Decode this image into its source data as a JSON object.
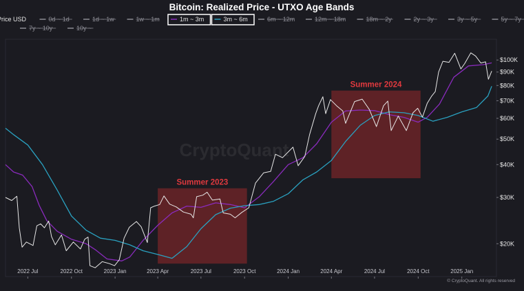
{
  "chart_data": {
    "type": "line",
    "title": "Bitcoin: Realized Price - UTXO Age Bands",
    "y_scale": "log",
    "ylim": [
      15000,
      120000
    ],
    "x_range": [
      "2022-05-15",
      "2025-03-15"
    ],
    "grid": false,
    "legend_position": "top",
    "legend": [
      {
        "label": "Price USD",
        "active": true,
        "highlighted": false
      },
      {
        "label": "0d ~ 1d",
        "active": false,
        "highlighted": false
      },
      {
        "label": "1d ~ 1w",
        "active": false,
        "highlighted": false
      },
      {
        "label": "1w ~ 1m",
        "active": false,
        "highlighted": false
      },
      {
        "label": "1m ~ 3m",
        "active": true,
        "highlighted": true
      },
      {
        "label": "3m ~ 6m",
        "active": true,
        "highlighted": true
      },
      {
        "label": "6m ~ 12m",
        "active": false,
        "highlighted": false
      },
      {
        "label": "12m ~ 18m",
        "active": false,
        "highlighted": false
      },
      {
        "label": "18m ~ 2y",
        "active": false,
        "highlighted": false
      },
      {
        "label": "2y ~ 3y",
        "active": false,
        "highlighted": false
      },
      {
        "label": "3y ~ 5y",
        "active": false,
        "highlighted": false
      },
      {
        "label": "5y ~ 7y",
        "active": false,
        "highlighted": false
      },
      {
        "label": "7y ~ 10y",
        "active": false,
        "highlighted": false
      },
      {
        "label": "10y ~",
        "active": false,
        "highlighted": false
      }
    ],
    "x_ticks": [
      {
        "label": "2022 Jul",
        "date": "2022-07-01"
      },
      {
        "label": "2022 Oct",
        "date": "2022-10-01"
      },
      {
        "label": "2023 Jan",
        "date": "2023-01-01"
      },
      {
        "label": "2023 Apr",
        "date": "2023-04-01"
      },
      {
        "label": "2023 Jul",
        "date": "2023-07-01"
      },
      {
        "label": "2023 Oct",
        "date": "2023-10-01"
      },
      {
        "label": "2024 Jan",
        "date": "2024-01-01"
      },
      {
        "label": "2024 Apr",
        "date": "2024-04-01"
      },
      {
        "label": "2024 Jul",
        "date": "2024-07-01"
      },
      {
        "label": "2024 Oct",
        "date": "2024-10-01"
      },
      {
        "label": "2025 Jan",
        "date": "2025-01-01"
      }
    ],
    "y_ticks": [
      {
        "label": "$100K",
        "value": 100000
      },
      {
        "label": "$90K",
        "value": 90000
      },
      {
        "label": "$80K",
        "value": 80000
      },
      {
        "label": "$70K",
        "value": 70000
      },
      {
        "label": "$60K",
        "value": 60000
      },
      {
        "label": "$50K",
        "value": 50000
      },
      {
        "label": "$40K",
        "value": 40000
      },
      {
        "label": "$30K",
        "value": 30000
      },
      {
        "label": "$20K",
        "value": 20000
      }
    ],
    "series": [
      {
        "name": "Price USD",
        "color": "#e8e8e8",
        "points": [
          [
            "2022-05-15",
            30000
          ],
          [
            "2022-05-28",
            29200
          ],
          [
            "2022-06-08",
            30300
          ],
          [
            "2022-06-13",
            23000
          ],
          [
            "2022-06-19",
            19400
          ],
          [
            "2022-06-28",
            20300
          ],
          [
            "2022-07-12",
            19700
          ],
          [
            "2022-07-20",
            23400
          ],
          [
            "2022-07-28",
            23800
          ],
          [
            "2022-08-05",
            23000
          ],
          [
            "2022-08-14",
            24400
          ],
          [
            "2022-08-20",
            21300
          ],
          [
            "2022-08-28",
            19800
          ],
          [
            "2022-09-10",
            21600
          ],
          [
            "2022-09-20",
            18800
          ],
          [
            "2022-10-05",
            20300
          ],
          [
            "2022-10-20",
            19100
          ],
          [
            "2022-10-29",
            20800
          ],
          [
            "2022-11-05",
            21200
          ],
          [
            "2022-11-09",
            16500
          ],
          [
            "2022-11-20",
            16200
          ],
          [
            "2022-12-05",
            17100
          ],
          [
            "2022-12-20",
            16800
          ],
          [
            "2022-12-31",
            16500
          ],
          [
            "2023-01-10",
            17400
          ],
          [
            "2023-01-20",
            21000
          ],
          [
            "2023-01-31",
            23100
          ],
          [
            "2023-02-15",
            24300
          ],
          [
            "2023-02-25",
            23200
          ],
          [
            "2023-03-10",
            20200
          ],
          [
            "2023-03-17",
            27400
          ],
          [
            "2023-03-25",
            27800
          ],
          [
            "2023-04-05",
            28200
          ],
          [
            "2023-04-14",
            30400
          ],
          [
            "2023-04-26",
            28300
          ],
          [
            "2023-05-10",
            27600
          ],
          [
            "2023-05-25",
            26400
          ],
          [
            "2023-06-10",
            25900
          ],
          [
            "2023-06-15",
            25100
          ],
          [
            "2023-06-22",
            30200
          ],
          [
            "2023-07-05",
            30600
          ],
          [
            "2023-07-14",
            31400
          ],
          [
            "2023-07-25",
            29300
          ],
          [
            "2023-08-10",
            29600
          ],
          [
            "2023-08-17",
            26200
          ],
          [
            "2023-09-01",
            25900
          ],
          [
            "2023-09-11",
            25100
          ],
          [
            "2023-09-25",
            26300
          ],
          [
            "2023-10-10",
            27400
          ],
          [
            "2023-10-24",
            34000
          ],
          [
            "2023-11-10",
            37200
          ],
          [
            "2023-11-25",
            37700
          ],
          [
            "2023-12-05",
            43800
          ],
          [
            "2023-12-20",
            42500
          ],
          [
            "2024-01-11",
            46600
          ],
          [
            "2024-01-22",
            39600
          ],
          [
            "2024-02-05",
            43000
          ],
          [
            "2024-02-15",
            52000
          ],
          [
            "2024-02-28",
            62500
          ],
          [
            "2024-03-05",
            67000
          ],
          [
            "2024-03-14",
            72500
          ],
          [
            "2024-03-20",
            62500
          ],
          [
            "2024-03-30",
            70700
          ],
          [
            "2024-04-12",
            67000
          ],
          [
            "2024-04-25",
            64000
          ],
          [
            "2024-05-01",
            57400
          ],
          [
            "2024-05-20",
            69500
          ],
          [
            "2024-06-05",
            71000
          ],
          [
            "2024-06-20",
            64800
          ],
          [
            "2024-07-05",
            55800
          ],
          [
            "2024-07-20",
            67000
          ],
          [
            "2024-07-29",
            69800
          ],
          [
            "2024-08-05",
            53900
          ],
          [
            "2024-08-20",
            61200
          ],
          [
            "2024-09-06",
            53900
          ],
          [
            "2024-09-20",
            63000
          ],
          [
            "2024-09-30",
            65500
          ],
          [
            "2024-10-10",
            60600
          ],
          [
            "2024-10-20",
            68400
          ],
          [
            "2024-10-29",
            72700
          ],
          [
            "2024-11-06",
            75800
          ],
          [
            "2024-11-13",
            90000
          ],
          [
            "2024-11-22",
            98900
          ],
          [
            "2024-12-05",
            98000
          ],
          [
            "2024-12-17",
            106100
          ],
          [
            "2024-12-30",
            92500
          ],
          [
            "2025-01-07",
            96900
          ],
          [
            "2025-01-20",
            106500
          ],
          [
            "2025-01-30",
            103600
          ],
          [
            "2025-02-10",
            97400
          ],
          [
            "2025-02-20",
            98400
          ],
          [
            "2025-02-26",
            84500
          ],
          [
            "2025-03-05",
            90800
          ]
        ]
      },
      {
        "name": "1m ~ 3m",
        "color": "#8a2bbd",
        "points": [
          [
            "2022-05-15",
            40000
          ],
          [
            "2022-06-01",
            37500
          ],
          [
            "2022-06-20",
            36500
          ],
          [
            "2022-07-10",
            33000
          ],
          [
            "2022-07-25",
            28000
          ],
          [
            "2022-08-10",
            24500
          ],
          [
            "2022-09-01",
            22300
          ],
          [
            "2022-10-01",
            20800
          ],
          [
            "2022-11-01",
            20000
          ],
          [
            "2022-11-20",
            19000
          ],
          [
            "2022-12-15",
            17500
          ],
          [
            "2023-01-15",
            17200
          ],
          [
            "2023-02-01",
            17800
          ],
          [
            "2023-03-01",
            20600
          ],
          [
            "2023-04-01",
            23500
          ],
          [
            "2023-05-01",
            26200
          ],
          [
            "2023-06-01",
            27800
          ],
          [
            "2023-07-01",
            27500
          ],
          [
            "2023-08-01",
            28600
          ],
          [
            "2023-09-01",
            28200
          ],
          [
            "2023-10-01",
            27400
          ],
          [
            "2023-11-01",
            30200
          ],
          [
            "2023-12-01",
            34500
          ],
          [
            "2024-01-01",
            40000
          ],
          [
            "2024-02-01",
            42500
          ],
          [
            "2024-03-01",
            48000
          ],
          [
            "2024-04-01",
            58000
          ],
          [
            "2024-05-01",
            64000
          ],
          [
            "2024-06-01",
            64500
          ],
          [
            "2024-07-01",
            64200
          ],
          [
            "2024-08-01",
            62000
          ],
          [
            "2024-09-01",
            60500
          ],
          [
            "2024-10-01",
            58000
          ],
          [
            "2024-10-20",
            60500
          ],
          [
            "2024-11-15",
            68000
          ],
          [
            "2024-12-15",
            86000
          ],
          [
            "2025-01-15",
            95000
          ],
          [
            "2025-02-15",
            96000
          ],
          [
            "2025-03-05",
            97500
          ]
        ]
      },
      {
        "name": "3m ~ 6m",
        "color": "#2aa1c0",
        "points": [
          [
            "2022-05-15",
            55000
          ],
          [
            "2022-06-01",
            52000
          ],
          [
            "2022-07-01",
            47500
          ],
          [
            "2022-08-01",
            40000
          ],
          [
            "2022-09-01",
            32000
          ],
          [
            "2022-10-01",
            25500
          ],
          [
            "2022-11-01",
            22500
          ],
          [
            "2022-12-01",
            21000
          ],
          [
            "2023-01-01",
            20600
          ],
          [
            "2023-02-01",
            19800
          ],
          [
            "2023-03-01",
            18800
          ],
          [
            "2023-04-01",
            18200
          ],
          [
            "2023-05-01",
            17600
          ],
          [
            "2023-06-01",
            19500
          ],
          [
            "2023-07-01",
            22800
          ],
          [
            "2023-08-01",
            25800
          ],
          [
            "2023-09-01",
            27300
          ],
          [
            "2023-10-01",
            27900
          ],
          [
            "2023-11-01",
            28200
          ],
          [
            "2023-12-01",
            29000
          ],
          [
            "2024-01-01",
            31000
          ],
          [
            "2024-02-01",
            35000
          ],
          [
            "2024-03-01",
            37500
          ],
          [
            "2024-04-01",
            41500
          ],
          [
            "2024-05-01",
            49000
          ],
          [
            "2024-06-01",
            56500
          ],
          [
            "2024-07-01",
            61500
          ],
          [
            "2024-08-01",
            63500
          ],
          [
            "2024-09-01",
            63000
          ],
          [
            "2024-10-01",
            61500
          ],
          [
            "2024-11-01",
            58500
          ],
          [
            "2024-12-01",
            60500
          ],
          [
            "2025-01-01",
            63500
          ],
          [
            "2025-02-01",
            66000
          ],
          [
            "2025-02-25",
            73000
          ],
          [
            "2025-03-05",
            79500
          ]
        ]
      }
    ],
    "annotations": [
      {
        "label": "Summer 2023",
        "x_start": "2023-04-01",
        "x_end": "2023-10-06",
        "y_low": 16800,
        "y_high": 32500,
        "color": "#b12c2c"
      },
      {
        "label": "Summer 2024",
        "x_start": "2024-04-01",
        "x_end": "2024-10-06",
        "y_low": 35500,
        "y_high": 76500,
        "color": "#b12c2c"
      }
    ],
    "watermark": "CryptoQuant",
    "credit": "© CryptoQuant. All rights reserved"
  }
}
